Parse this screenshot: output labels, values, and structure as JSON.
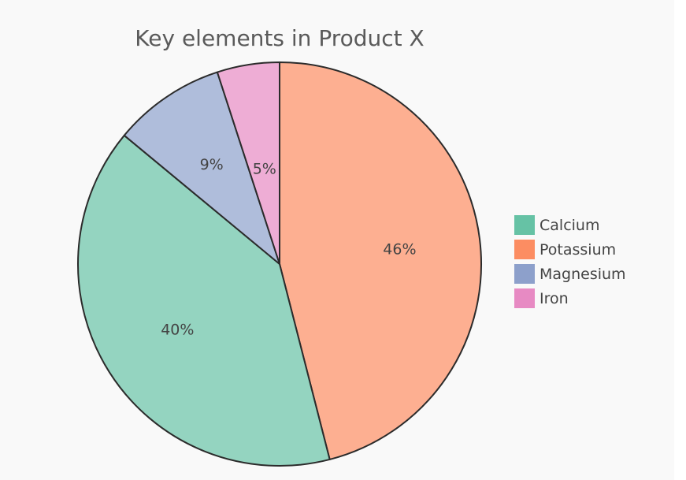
{
  "chart_data": {
    "type": "pie",
    "title": "Key elements in Product X",
    "categories": [
      "Potassium",
      "Calcium",
      "Magnesium",
      "Iron"
    ],
    "values": [
      46,
      40,
      9,
      5
    ],
    "labels": [
      "46%",
      "40%",
      "9%",
      "5%"
    ],
    "legend_order": [
      "Calcium",
      "Potassium",
      "Magnesium",
      "Iron"
    ],
    "colors": {
      "Calcium": "#66c2a5",
      "Potassium": "#fc8d62",
      "Magnesium": "#8da0cb",
      "Iron": "#e78ac3"
    },
    "start": "top",
    "direction": "clockwise",
    "legend_position": "right"
  }
}
